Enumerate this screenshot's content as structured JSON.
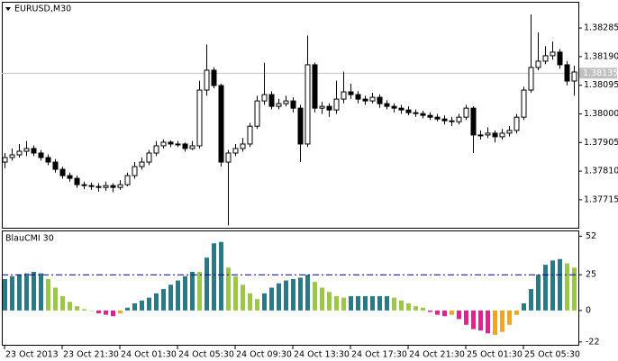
{
  "chart_data": [
    {
      "type": "candlestick",
      "title": "EURUSD,M30",
      "open": [
        1.3784,
        1.37855,
        1.37864,
        1.37876,
        1.37885,
        1.3787,
        1.37855,
        1.3784,
        1.37816,
        1.37795,
        1.37786,
        1.37765,
        1.37762,
        1.37759,
        1.37756,
        1.37762,
        1.37756,
        1.37765,
        1.37795,
        1.37825,
        1.3784,
        1.3787,
        1.37894,
        1.37906,
        1.379,
        1.379,
        1.37885,
        1.37894,
        1.38079,
        1.38145,
        1.38094,
        1.3784,
        1.3787,
        1.37885,
        1.379,
        1.37959,
        1.38043,
        1.38064,
        1.38025,
        1.38034,
        1.38043,
        1.38019,
        1.379,
        1.38163,
        1.38019,
        1.38025,
        1.38013,
        1.38049,
        1.38073,
        1.38064,
        1.38049,
        1.38043,
        1.38055,
        1.38034,
        1.38025,
        1.38019,
        1.38013,
        1.38004,
        1.38001,
        1.37995,
        1.37989,
        1.37983,
        1.37977,
        1.37974,
        1.37989,
        1.38019,
        1.3793,
        1.3793,
        1.37936,
        1.37924,
        1.37936,
        1.37945,
        1.37989,
        1.38079,
        1.38154,
        1.38175,
        1.38193,
        1.38205,
        1.38163,
        1.38109
      ],
      "high": [
        1.3787,
        1.37885,
        1.379,
        1.3791,
        1.37895,
        1.3788,
        1.37865,
        1.3785,
        1.37825,
        1.37805,
        1.37795,
        1.37775,
        1.37772,
        1.3777,
        1.37775,
        1.3777,
        1.3778,
        1.37805,
        1.3784,
        1.37855,
        1.3788,
        1.3791,
        1.37915,
        1.37912,
        1.3791,
        1.37905,
        1.3791,
        1.3811,
        1.3823,
        1.38155,
        1.381,
        1.3788,
        1.379,
        1.3792,
        1.3797,
        1.3806,
        1.3817,
        1.38075,
        1.3805,
        1.3806,
        1.38055,
        1.3803,
        1.3826,
        1.3817,
        1.3804,
        1.38035,
        1.3811,
        1.3814,
        1.381,
        1.38075,
        1.3806,
        1.3807,
        1.38065,
        1.38045,
        1.38035,
        1.3803,
        1.38025,
        1.38015,
        1.3801,
        1.38005,
        1.38,
        1.37995,
        1.3799,
        1.38,
        1.3803,
        1.38025,
        1.37945,
        1.37955,
        1.37945,
        1.3795,
        1.3796,
        1.38,
        1.3809,
        1.3833,
        1.3827,
        1.38225,
        1.3824,
        1.38215,
        1.38175,
        1.3816
      ],
      "low": [
        1.3782,
        1.37845,
        1.37855,
        1.3786,
        1.3786,
        1.37845,
        1.3783,
        1.37805,
        1.37785,
        1.37775,
        1.37755,
        1.3775,
        1.37748,
        1.37742,
        1.37745,
        1.3774,
        1.37748,
        1.3776,
        1.37785,
        1.37815,
        1.3783,
        1.3786,
        1.37885,
        1.3789,
        1.3789,
        1.37875,
        1.3788,
        1.37885,
        1.3806,
        1.38085,
        1.37825,
        1.3763,
        1.3786,
        1.37875,
        1.3789,
        1.3795,
        1.3803,
        1.38015,
        1.38015,
        1.38025,
        1.38005,
        1.3784,
        1.3789,
        1.38005,
        1.38,
        1.3799,
        1.38,
        1.38035,
        1.3805,
        1.38035,
        1.3803,
        1.38035,
        1.3802,
        1.38015,
        1.38005,
        1.38,
        1.37995,
        1.3799,
        1.37985,
        1.3798,
        1.37975,
        1.37965,
        1.3796,
        1.37965,
        1.3798,
        1.3787,
        1.37915,
        1.3792,
        1.37905,
        1.37915,
        1.37925,
        1.37935,
        1.3798,
        1.3807,
        1.38145,
        1.38165,
        1.3818,
        1.3815,
        1.38095,
        1.3806
      ],
      "close": [
        1.37855,
        1.37864,
        1.37876,
        1.37885,
        1.3787,
        1.37855,
        1.3784,
        1.37816,
        1.37795,
        1.37786,
        1.37765,
        1.37762,
        1.37759,
        1.37756,
        1.37762,
        1.37756,
        1.37765,
        1.37795,
        1.37825,
        1.3784,
        1.3787,
        1.37894,
        1.37906,
        1.379,
        1.379,
        1.37885,
        1.37894,
        1.38079,
        1.38145,
        1.38094,
        1.3784,
        1.3787,
        1.37885,
        1.379,
        1.37959,
        1.38043,
        1.38064,
        1.38025,
        1.38034,
        1.38043,
        1.38019,
        1.379,
        1.38163,
        1.38019,
        1.38025,
        1.38013,
        1.38049,
        1.38073,
        1.38064,
        1.38049,
        1.38043,
        1.38055,
        1.38034,
        1.38025,
        1.38019,
        1.38013,
        1.38004,
        1.38001,
        1.37995,
        1.37989,
        1.37983,
        1.37977,
        1.37974,
        1.37989,
        1.38019,
        1.3793,
        1.3793,
        1.37936,
        1.37924,
        1.37936,
        1.37945,
        1.37989,
        1.38079,
        1.38154,
        1.38175,
        1.38193,
        1.38205,
        1.38163,
        1.38109,
        1.38139
      ],
      "up_color": "#ffffff",
      "down_color": "#000000",
      "ylim": [
        1.37622,
        1.38372
      ],
      "yticks": [
        {
          "value": 1.38285,
          "label": "1.38285"
        },
        {
          "value": 1.3819,
          "label": "1.38190"
        },
        {
          "value": 1.38095,
          "label": "1.38095"
        },
        {
          "value": 1.38,
          "label": "1.38000"
        },
        {
          "value": 1.37905,
          "label": "1.37905"
        },
        {
          "value": 1.3781,
          "label": "1.37810"
        },
        {
          "value": 1.37715,
          "label": "1.37715"
        }
      ],
      "last_price": 1.38135,
      "xticks": [
        {
          "value": 0,
          "label": "23 Oct 2013"
        },
        {
          "value": 8,
          "label": "23 Oct 21:30"
        },
        {
          "value": 16,
          "label": "24 Oct 01:30"
        },
        {
          "value": 24,
          "label": "24 Oct 05:30"
        },
        {
          "value": 32,
          "label": "24 Oct 09:30"
        },
        {
          "value": 40,
          "label": "24 Oct 13:30"
        },
        {
          "value": 48,
          "label": "24 Oct 17:30"
        },
        {
          "value": 56,
          "label": "24 Oct 21:30"
        },
        {
          "value": 64,
          "label": "25 Oct 01:30"
        },
        {
          "value": 72,
          "label": "25 Oct 05:30"
        }
      ]
    },
    {
      "type": "bar",
      "title": "BlauCMI 30",
      "values": [
        22,
        24,
        25,
        26,
        27,
        26,
        22,
        16,
        10,
        6,
        3,
        1,
        0,
        -2,
        -3,
        -4,
        -2,
        2,
        5,
        7,
        9,
        12,
        15,
        18,
        21,
        24,
        27,
        27,
        37,
        47,
        48,
        30,
        24,
        18,
        12,
        8,
        12,
        16,
        19,
        21,
        22,
        23,
        25,
        20,
        16,
        13,
        10,
        9,
        10,
        10,
        10,
        10,
        10,
        10,
        9,
        7,
        5,
        3,
        2,
        -1,
        -3,
        -4,
        -3,
        -6,
        -10,
        -13,
        -14,
        -16,
        -17,
        -15,
        -10,
        -3,
        5,
        15,
        25,
        32,
        35,
        36,
        33,
        30
      ],
      "colors": [
        "#1b7f8c",
        "#1b7f8c",
        "#1b7f8c",
        "#1b7f8c",
        "#1b7f8c",
        "#1b7f8c",
        "#9acd32",
        "#9acd32",
        "#9acd32",
        "#9acd32",
        "#9acd32",
        "#9acd32",
        "#9acd32",
        "#ff1493",
        "#ff1493",
        "#ff1493",
        "#ffa500",
        "#1b7f8c",
        "#1b7f8c",
        "#1b7f8c",
        "#1b7f8c",
        "#1b7f8c",
        "#1b7f8c",
        "#1b7f8c",
        "#1b7f8c",
        "#1b7f8c",
        "#1b7f8c",
        "#9acd32",
        "#1b7f8c",
        "#1b7f8c",
        "#1b7f8c",
        "#9acd32",
        "#9acd32",
        "#9acd32",
        "#9acd32",
        "#9acd32",
        "#1b7f8c",
        "#1b7f8c",
        "#1b7f8c",
        "#1b7f8c",
        "#1b7f8c",
        "#1b7f8c",
        "#1b7f8c",
        "#9acd32",
        "#9acd32",
        "#9acd32",
        "#9acd32",
        "#9acd32",
        "#1b7f8c",
        "#1b7f8c",
        "#1b7f8c",
        "#1b7f8c",
        "#1b7f8c",
        "#1b7f8c",
        "#9acd32",
        "#9acd32",
        "#9acd32",
        "#9acd32",
        "#9acd32",
        "#ff1493",
        "#ff1493",
        "#ff1493",
        "#ffa500",
        "#ff1493",
        "#ff1493",
        "#ff1493",
        "#ff1493",
        "#ff1493",
        "#ffa500",
        "#ffa500",
        "#ffa500",
        "#ffa500",
        "#1b7f8c",
        "#1b7f8c",
        "#1b7f8c",
        "#1b7f8c",
        "#1b7f8c",
        "#1b7f8c",
        "#9acd32",
        "#9acd32"
      ],
      "ylim": [
        -24,
        56
      ],
      "yticks": [
        52,
        25,
        0,
        -22
      ],
      "level": 25,
      "level_color": "#00008b"
    }
  ]
}
